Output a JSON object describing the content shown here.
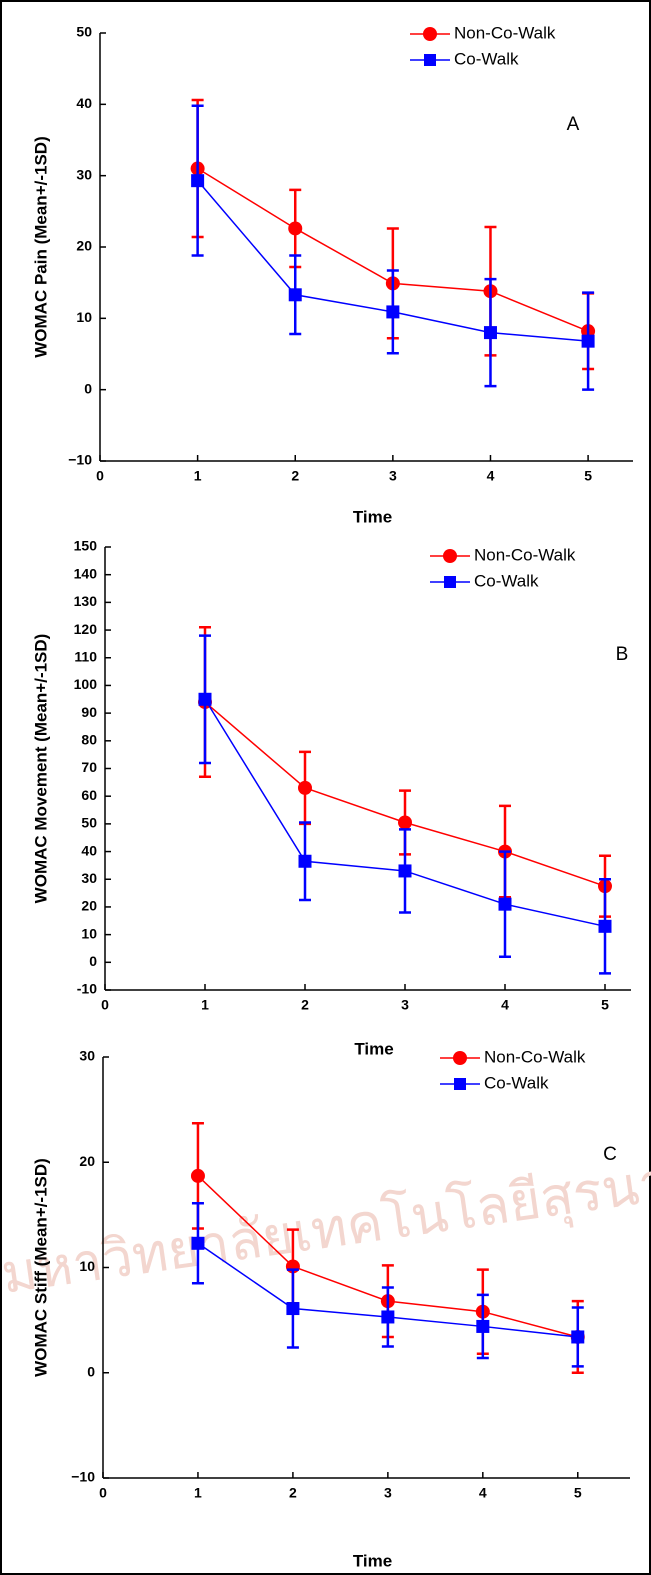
{
  "watermark": "มหาวิทยาลัยเทคโนโลยีสุรนารี",
  "chart_data": [
    {
      "type": "line",
      "panel_label": "A",
      "x_label": "Time",
      "y_label": "WOMAC Pain (Mean+/-1SD)",
      "x": [
        1,
        2,
        3,
        4,
        5
      ],
      "xlim": [
        0,
        5.46
      ],
      "xticks": [
        0,
        1,
        2,
        3,
        4,
        5
      ],
      "ylim": [
        -10,
        50
      ],
      "yticks": [
        {
          "value": -10,
          "label": "−10"
        },
        0,
        10,
        20,
        30,
        40,
        50
      ],
      "legend": "upper right",
      "series": [
        {
          "name": "Non-Co-Walk",
          "color": "#ff0000",
          "marker": "circle",
          "values": [
            31,
            22.6,
            14.9,
            13.8,
            8.2
          ],
          "errors": [
            9.6,
            5.4,
            7.7,
            9,
            5.3
          ]
        },
        {
          "name": "Co-Walk",
          "color": "#0000ff",
          "marker": "square",
          "values": [
            29.3,
            13.3,
            10.9,
            8,
            6.8
          ],
          "errors": [
            10.5,
            5.5,
            5.8,
            7.5,
            6.8
          ]
        }
      ]
    },
    {
      "type": "line",
      "panel_label": "B",
      "x_label": "Time",
      "y_label": "WOMAC Movement (Mean+/-1SD)",
      "x": [
        1,
        2,
        3,
        4,
        5
      ],
      "xlim": [
        0,
        5.26
      ],
      "xticks": [
        0,
        1,
        2,
        3,
        4,
        5
      ],
      "ylim": [
        -10,
        150
      ],
      "yticks": [
        -10,
        0,
        10,
        20,
        30,
        40,
        50,
        60,
        70,
        80,
        90,
        100,
        110,
        120,
        130,
        140,
        150
      ],
      "legend": "upper right",
      "series": [
        {
          "name": "Non-Co-Walk",
          "color": "#ff0000",
          "marker": "circle",
          "values": [
            94,
            63,
            50.5,
            40,
            27.5
          ],
          "errors": [
            27,
            13,
            11.5,
            16.5,
            11
          ]
        },
        {
          "name": "Co-Walk",
          "color": "#0000ff",
          "marker": "square",
          "values": [
            95,
            36.5,
            33,
            21,
            13
          ],
          "errors": [
            23,
            14,
            15,
            19,
            17
          ]
        }
      ]
    },
    {
      "type": "line",
      "panel_label": "C",
      "x_label": "Time",
      "y_label": "WOMAC Stiff (Mean+/-1SD)",
      "x": [
        1,
        2,
        3,
        4,
        5
      ],
      "xlim": [
        0,
        5.55
      ],
      "xticks": [
        0,
        1,
        2,
        3,
        4,
        5
      ],
      "ylim": [
        -10,
        30
      ],
      "yticks": [
        {
          "value": -10,
          "label": "−10"
        },
        0,
        10,
        20,
        30
      ],
      "legend": "upper right",
      "series": [
        {
          "name": "Non-Co-Walk",
          "color": "#ff0000",
          "marker": "circle",
          "values": [
            18.7,
            10.1,
            6.8,
            5.8,
            3.4
          ],
          "errors": [
            5,
            3.5,
            3.4,
            4,
            3.4
          ]
        },
        {
          "name": "Co-Walk",
          "color": "#0000ff",
          "marker": "square",
          "values": [
            12.3,
            6.1,
            5.3,
            4.4,
            3.4
          ],
          "errors": [
            3.8,
            3.7,
            2.8,
            3,
            2.8
          ]
        }
      ]
    }
  ]
}
